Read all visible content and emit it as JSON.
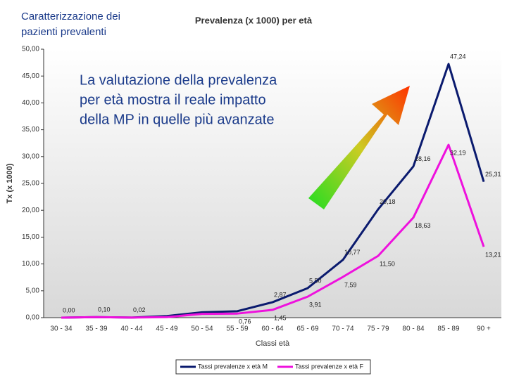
{
  "slide_title": [
    "Caratterizzazione dei",
    "pazienti prevalenti"
  ],
  "chart_data": {
    "type": "line",
    "title": "Prevalenza (x 1000) per età",
    "annotation": [
      "La valutazione della prevalenza",
      "per età mostra il reale impatto",
      "della MP in quelle più avanzate"
    ],
    "x_label": "Classi età",
    "y_label": "Tx (x 1000)",
    "categories": [
      "30 - 34",
      "35 - 39",
      "40 - 44",
      "45 - 49",
      "50 - 54",
      "55 - 59",
      "60 - 64",
      "65 - 69",
      "70 - 74",
      "75 - 79",
      "80 - 84",
      "85 - 89",
      "90 +"
    ],
    "ylim": [
      0,
      50
    ],
    "yticks": [
      {
        "value": 0,
        "label": "0,00"
      },
      {
        "value": 5,
        "label": "5,00"
      },
      {
        "value": 10,
        "label": "10,00"
      },
      {
        "value": 15,
        "label": "15,00"
      },
      {
        "value": 20,
        "label": "20,00"
      },
      {
        "value": 25,
        "label": "25,00"
      },
      {
        "value": 30,
        "label": "30,00"
      },
      {
        "value": 35,
        "label": "35,00"
      },
      {
        "value": 40,
        "label": "40,00"
      },
      {
        "value": 45,
        "label": "45,00"
      },
      {
        "value": 50,
        "label": "50,00"
      }
    ],
    "series": [
      {
        "name": "Tassi prevalenze x età M",
        "color": "#0a1a6e",
        "values": [
          0,
          0.1,
          0.02,
          0.3,
          1.0,
          1.2,
          2.87,
          5.5,
          10.77,
          20.18,
          28.16,
          47.24,
          25.31
        ],
        "value_labels": [
          "0,00",
          "0,10",
          "0,02",
          null,
          null,
          null,
          "2,87",
          "5,50",
          "10,77",
          "20,18",
          "28,16",
          "47,24",
          "25,31"
        ]
      },
      {
        "name": "Tassi prevalenze x età F",
        "color": "#ee11dd",
        "values": [
          0,
          0.1,
          0.02,
          0.1,
          0.7,
          0.76,
          1.45,
          3.91,
          7.59,
          11.5,
          18.63,
          32.19,
          13.21
        ],
        "value_labels": [
          null,
          null,
          null,
          null,
          null,
          "0,76",
          "1,45",
          "3,91",
          "7,59",
          "11,50",
          "18,63",
          "32,19",
          "13,21"
        ]
      }
    ]
  }
}
